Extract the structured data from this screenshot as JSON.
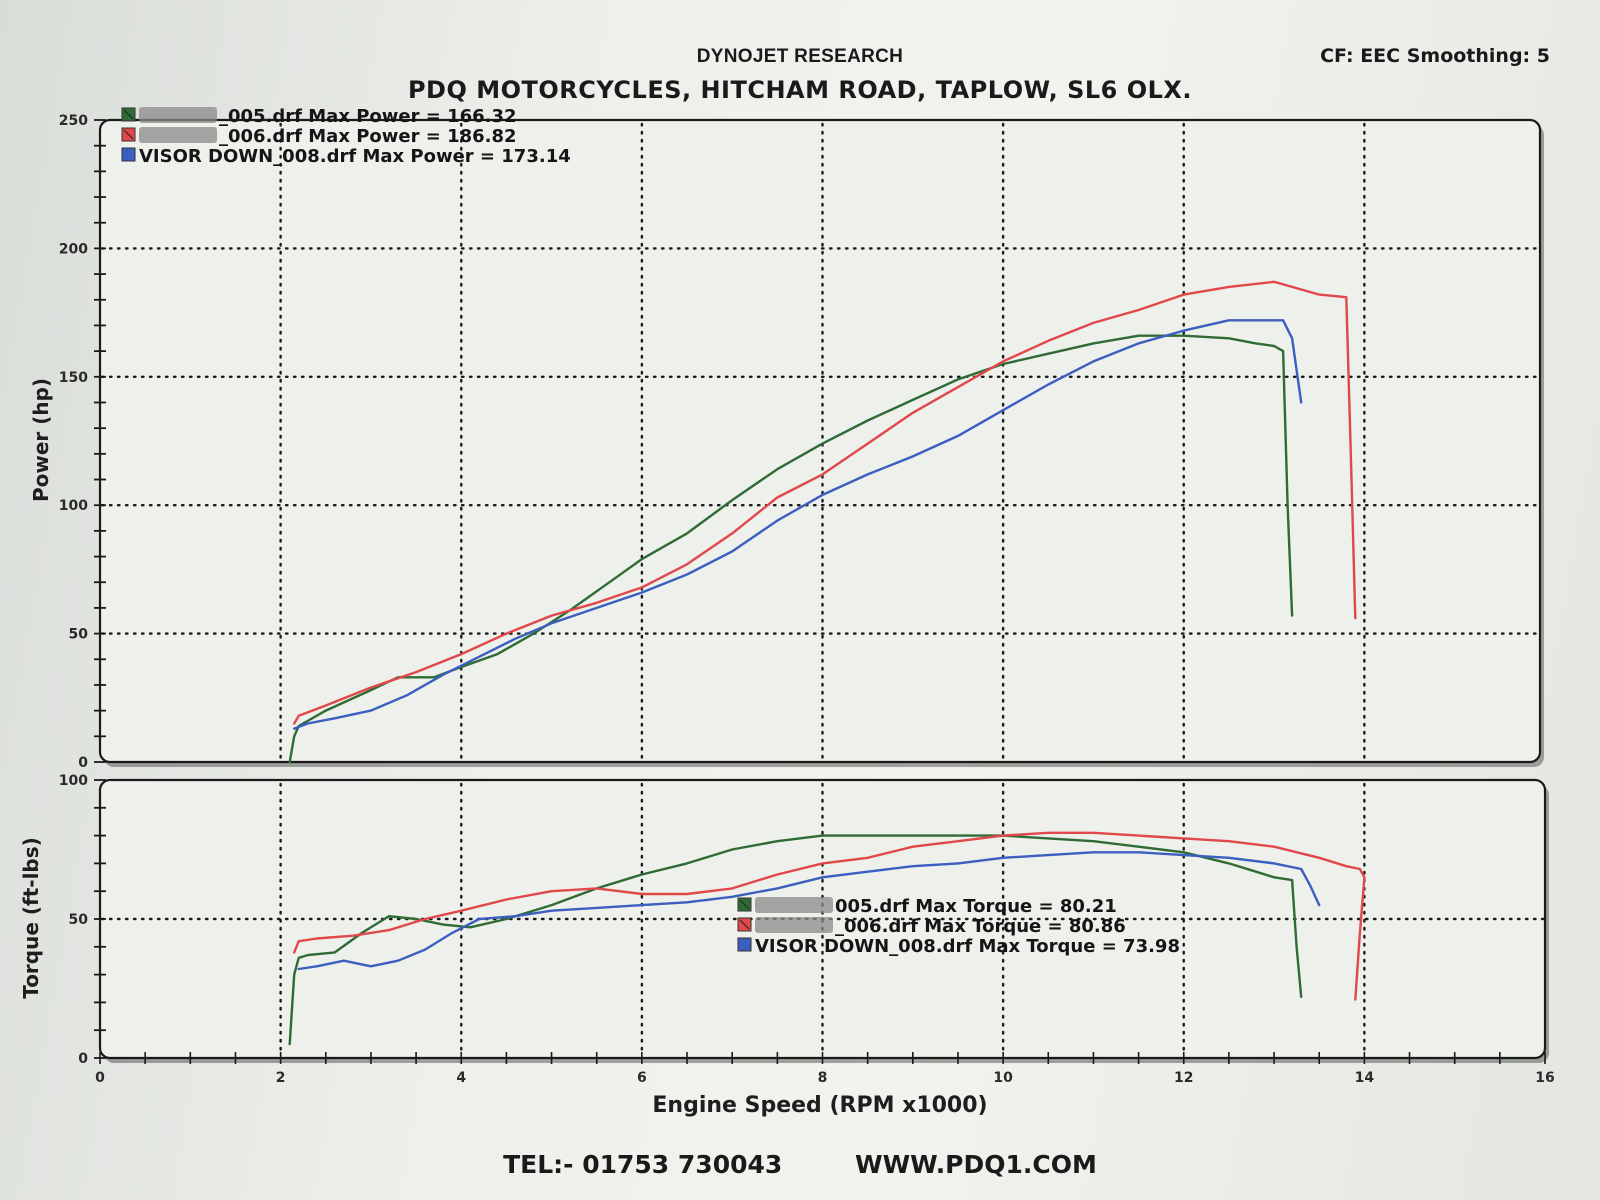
{
  "header": {
    "title": "DYNOJET RESEARCH",
    "subtitle": "PDQ MOTORCYCLES, HITCHAM ROAD, TAPLOW, SL6 OLX.",
    "settings": "CF: EEC  Smoothing: 5"
  },
  "footer": {
    "tel": "TEL:- 01753 730043",
    "web": "WWW.PDQ1.COM"
  },
  "colors": {
    "run_005": "#2e6b35",
    "run_006": "#e0484a",
    "run_008": "#3a5fc0",
    "grid": "#1a1a1a",
    "frame": "#1a1a1a"
  },
  "legend_power": [
    {
      "prefix_redacted": true,
      "label": "_005.drf Max Power = 166.32",
      "color": "#2e6b35"
    },
    {
      "prefix_redacted": true,
      "label": "_006.drf Max Power = 186.82",
      "color": "#e0484a"
    },
    {
      "prefix_redacted": false,
      "label": "VISOR DOWN_008.drf Max Power = 173.14",
      "color": "#3a5fc0"
    }
  ],
  "legend_torque": [
    {
      "prefix_redacted": true,
      "label": "005.drf Max Torque = 80.21",
      "color": "#2e6b35"
    },
    {
      "prefix_redacted": true,
      "label": "_006.drf Max Torque = 80.86",
      "color": "#e0484a"
    },
    {
      "prefix_redacted": false,
      "label": "VISOR DOWN_008.drf Max Torque = 73.98",
      "color": "#3a5fc0"
    }
  ],
  "chart_data": [
    {
      "type": "line",
      "title": "Power",
      "xlabel": "Engine Speed (RPM x1000)",
      "ylabel": "Power (hp)",
      "xlim": [
        0,
        16
      ],
      "ylim": [
        0,
        250
      ],
      "xticks": [
        0,
        2,
        4,
        6,
        8,
        10,
        12,
        14,
        16
      ],
      "yticks": [
        0,
        50,
        100,
        150,
        200,
        250
      ],
      "grid": "dotted",
      "legend_position": "top-left",
      "series": [
        {
          "name": "_005.drf Max Power = 166.32",
          "color": "#2e6b35",
          "x": [
            2.1,
            2.15,
            2.2,
            2.5,
            3.0,
            3.3,
            3.7,
            4.0,
            4.4,
            4.8,
            5.2,
            5.6,
            6.0,
            6.5,
            7.0,
            7.5,
            8.0,
            8.5,
            9.0,
            9.5,
            10.0,
            10.5,
            11.0,
            11.5,
            12.0,
            12.5,
            12.8,
            13.0,
            13.1,
            13.15,
            13.2
          ],
          "y": [
            0,
            10,
            14,
            20,
            28,
            33,
            33,
            37,
            42,
            50,
            59,
            69,
            79,
            89,
            102,
            114,
            124,
            133,
            141,
            149,
            155,
            159,
            163,
            166,
            166,
            165,
            163,
            162,
            160,
            100,
            57
          ]
        },
        {
          "name": "_006.drf Max Power = 186.82",
          "color": "#e0484a",
          "x": [
            2.15,
            2.2,
            2.5,
            3.0,
            3.5,
            4.0,
            4.5,
            5.0,
            5.5,
            6.0,
            6.5,
            7.0,
            7.5,
            8.0,
            8.5,
            9.0,
            9.5,
            10.0,
            10.5,
            11.0,
            11.5,
            12.0,
            12.5,
            13.0,
            13.2,
            13.5,
            13.8,
            13.85,
            13.9
          ],
          "y": [
            15,
            18,
            22,
            29,
            35,
            42,
            50,
            57,
            62,
            68,
            77,
            89,
            103,
            112,
            124,
            136,
            146,
            156,
            164,
            171,
            176,
            182,
            185,
            187,
            185,
            182,
            181,
            120,
            56
          ]
        },
        {
          "name": "VISOR DOWN_008.drf Max Power = 173.14",
          "color": "#3a5fc0",
          "x": [
            2.15,
            2.3,
            2.6,
            3.0,
            3.4,
            3.8,
            4.2,
            4.6,
            5.0,
            5.5,
            6.0,
            6.5,
            7.0,
            7.5,
            8.0,
            8.5,
            9.0,
            9.5,
            10.0,
            10.5,
            11.0,
            11.5,
            12.0,
            12.5,
            12.9,
            13.1,
            13.2,
            13.3
          ],
          "y": [
            13,
            15,
            17,
            20,
            26,
            34,
            41,
            48,
            54,
            60,
            66,
            73,
            82,
            94,
            104,
            112,
            119,
            127,
            137,
            147,
            156,
            163,
            168,
            172,
            172,
            172,
            165,
            140
          ]
        }
      ]
    },
    {
      "type": "line",
      "title": "Torque",
      "xlabel": "Engine Speed (RPM x1000)",
      "ylabel": "Torque (ft-lbs)",
      "xlim": [
        0,
        16
      ],
      "ylim": [
        0,
        100
      ],
      "xticks": [
        0,
        2,
        4,
        6,
        8,
        10,
        12,
        14,
        16
      ],
      "yticks": [
        0,
        50,
        100
      ],
      "grid": "dotted",
      "legend_position": "center",
      "series": [
        {
          "name": "005.drf Max Torque = 80.21",
          "color": "#2e6b35",
          "x": [
            2.1,
            2.15,
            2.2,
            2.3,
            2.6,
            2.9,
            3.2,
            3.5,
            3.8,
            4.1,
            4.5,
            5.0,
            5.5,
            6.0,
            6.5,
            7.0,
            7.5,
            8.0,
            8.5,
            9.0,
            9.5,
            10.0,
            10.5,
            11.0,
            11.5,
            12.0,
            12.5,
            12.8,
            13.0,
            13.2,
            13.25,
            13.3
          ],
          "y": [
            5,
            30,
            36,
            37,
            38,
            45,
            51,
            50,
            48,
            47,
            50,
            55,
            61,
            66,
            70,
            75,
            78,
            80,
            80,
            80,
            80,
            80,
            79,
            78,
            76,
            74,
            70,
            67,
            65,
            64,
            40,
            22
          ]
        },
        {
          "name": "_006.drf Max Torque = 80.86",
          "color": "#e0484a",
          "x": [
            2.15,
            2.2,
            2.4,
            2.8,
            3.2,
            3.6,
            4.0,
            4.5,
            5.0,
            5.5,
            6.0,
            6.5,
            7.0,
            7.5,
            8.0,
            8.5,
            9.0,
            9.5,
            10.0,
            10.5,
            11.0,
            11.5,
            12.0,
            12.5,
            13.0,
            13.5,
            13.8,
            13.95,
            14.0,
            13.95,
            13.9
          ],
          "y": [
            38,
            42,
            43,
            44,
            46,
            50,
            53,
            57,
            60,
            61,
            59,
            59,
            61,
            66,
            70,
            72,
            76,
            78,
            80,
            81,
            81,
            80,
            79,
            78,
            76,
            72,
            69,
            68,
            65,
            45,
            21
          ]
        },
        {
          "name": "VISOR DOWN_008.drf Max Torque = 73.98",
          "color": "#3a5fc0",
          "x": [
            2.2,
            2.4,
            2.7,
            3.0,
            3.3,
            3.6,
            3.9,
            4.2,
            4.6,
            5.0,
            5.5,
            6.0,
            6.5,
            7.0,
            7.5,
            8.0,
            8.5,
            9.0,
            9.5,
            10.0,
            10.5,
            11.0,
            11.5,
            12.0,
            12.5,
            13.0,
            13.3,
            13.4,
            13.5
          ],
          "y": [
            32,
            33,
            35,
            33,
            35,
            39,
            45,
            50,
            51,
            53,
            54,
            55,
            56,
            58,
            61,
            65,
            67,
            69,
            70,
            72,
            73,
            74,
            74,
            73,
            72,
            70,
            68,
            62,
            55
          ]
        }
      ]
    }
  ]
}
